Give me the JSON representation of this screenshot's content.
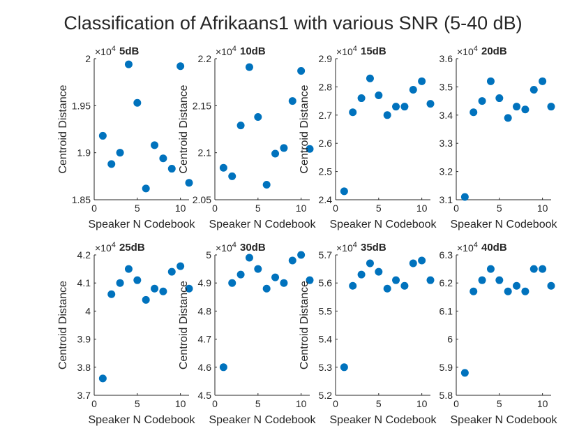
{
  "figure": {
    "title": "Classification of Afrikaans1 with various SNR (5-40 dB)"
  },
  "style": {
    "marker_color": "#0072BD",
    "axis_color": "#262626"
  },
  "chart_data": [
    {
      "type": "scatter",
      "title": "5dB",
      "exponent_label": "×10",
      "exponent": "4",
      "xlabel": "Speaker N Codebook",
      "ylabel": "Centroid Distance",
      "xlim": [
        0,
        11
      ],
      "ylim": [
        1.85,
        2.0
      ],
      "xticks": [
        "0",
        "5",
        "10"
      ],
      "yticks": [
        "1.85",
        "1.9",
        "1.95",
        "2"
      ],
      "x": [
        1,
        2,
        3,
        4,
        5,
        6,
        7,
        8,
        9,
        10,
        11
      ],
      "y": [
        1.918,
        1.888,
        1.9,
        1.994,
        1.953,
        1.862,
        1.908,
        1.894,
        1.883,
        1.992,
        1.868
      ]
    },
    {
      "type": "scatter",
      "title": "10dB",
      "exponent_label": "×10",
      "exponent": "4",
      "xlabel": "Speaker N Codebook",
      "ylabel": "Centroid Distance",
      "xlim": [
        0,
        11
      ],
      "ylim": [
        2.05,
        2.2
      ],
      "xticks": [
        "0",
        "5",
        "10"
      ],
      "yticks": [
        "2.05",
        "2.1",
        "2.15",
        "2.2"
      ],
      "x": [
        1,
        2,
        3,
        4,
        5,
        6,
        7,
        8,
        9,
        10,
        11
      ],
      "y": [
        2.084,
        2.075,
        2.129,
        2.191,
        2.138,
        2.066,
        2.099,
        2.105,
        2.155,
        2.187,
        2.104
      ]
    },
    {
      "type": "scatter",
      "title": "15dB",
      "exponent_label": "×10",
      "exponent": "4",
      "xlabel": "Speaker N Codebook",
      "ylabel": "Centroid Distance",
      "xlim": [
        0,
        11
      ],
      "ylim": [
        2.4,
        2.9
      ],
      "xticks": [
        "0",
        "5",
        "10"
      ],
      "yticks": [
        "2.4",
        "2.5",
        "2.6",
        "2.7",
        "2.8",
        "2.9"
      ],
      "x": [
        1,
        2,
        3,
        4,
        5,
        6,
        7,
        8,
        9,
        10,
        11
      ],
      "y": [
        2.43,
        2.71,
        2.76,
        2.83,
        2.77,
        2.7,
        2.73,
        2.73,
        2.79,
        2.82,
        2.74
      ]
    },
    {
      "type": "scatter",
      "title": "20dB",
      "exponent_label": "×10",
      "exponent": "4",
      "xlabel": "Speaker N Codebook",
      "ylabel": "",
      "xlim": [
        0,
        11
      ],
      "ylim": [
        3.1,
        3.6
      ],
      "xticks": [
        "0",
        "5",
        "10"
      ],
      "yticks": [
        "3.1",
        "3.2",
        "3.3",
        "3.4",
        "3.5",
        "3.6"
      ],
      "x": [
        1,
        2,
        3,
        4,
        5,
        6,
        7,
        8,
        9,
        10,
        11
      ],
      "y": [
        3.11,
        3.41,
        3.45,
        3.52,
        3.46,
        3.39,
        3.43,
        3.42,
        3.49,
        3.52,
        3.43
      ]
    },
    {
      "type": "scatter",
      "title": "25dB",
      "exponent_label": "×10",
      "exponent": "4",
      "xlabel": "Speaker N Codebook",
      "ylabel": "Centroid Distance",
      "xlim": [
        0,
        11
      ],
      "ylim": [
        3.7,
        4.2
      ],
      "xticks": [
        "0",
        "5",
        "10"
      ],
      "yticks": [
        "3.7",
        "3.8",
        "3.9",
        "4",
        "4.1",
        "4.2"
      ],
      "x": [
        1,
        2,
        3,
        4,
        5,
        6,
        7,
        8,
        9,
        10,
        11
      ],
      "y": [
        3.76,
        4.06,
        4.1,
        4.15,
        4.11,
        4.04,
        4.08,
        4.07,
        4.14,
        4.16,
        4.08
      ]
    },
    {
      "type": "scatter",
      "title": "30dB",
      "exponent_label": "×10",
      "exponent": "4",
      "xlabel": "Speaker N Codebook",
      "ylabel": "Centroid Distance",
      "xlim": [
        0,
        11
      ],
      "ylim": [
        4.5,
        5.0
      ],
      "xticks": [
        "0",
        "5",
        "10"
      ],
      "yticks": [
        "4.5",
        "4.6",
        "4.7",
        "4.8",
        "4.9",
        "5"
      ],
      "x": [
        1,
        2,
        3,
        4,
        5,
        6,
        7,
        8,
        9,
        10,
        11
      ],
      "y": [
        4.6,
        4.9,
        4.93,
        4.99,
        4.95,
        4.88,
        4.92,
        4.9,
        4.98,
        5.0,
        4.91
      ]
    },
    {
      "type": "scatter",
      "title": "35dB",
      "exponent_label": "×10",
      "exponent": "4",
      "xlabel": "Speaker N Codebook",
      "ylabel": "Centroid Distance",
      "xlim": [
        0,
        11
      ],
      "ylim": [
        5.2,
        5.7
      ],
      "xticks": [
        "0",
        "5",
        "10"
      ],
      "yticks": [
        "5.2",
        "5.3",
        "5.4",
        "5.5",
        "5.6",
        "5.7"
      ],
      "x": [
        1,
        2,
        3,
        4,
        5,
        6,
        7,
        8,
        9,
        10,
        11
      ],
      "y": [
        5.3,
        5.59,
        5.63,
        5.67,
        5.64,
        5.58,
        5.61,
        5.59,
        5.67,
        5.68,
        5.61
      ]
    },
    {
      "type": "scatter",
      "title": "40dB",
      "exponent_label": "×10",
      "exponent": "4",
      "xlabel": "Speaker N Codebook",
      "ylabel": "",
      "xlim": [
        0,
        11
      ],
      "ylim": [
        5.8,
        6.3
      ],
      "xticks": [
        "0",
        "5",
        "10"
      ],
      "yticks": [
        "5.8",
        "5.9",
        "6",
        "6.1",
        "6.2",
        "6.3"
      ],
      "x": [
        1,
        2,
        3,
        4,
        5,
        6,
        7,
        8,
        9,
        10,
        11
      ],
      "y": [
        5.88,
        6.17,
        6.21,
        6.25,
        6.21,
        6.17,
        6.19,
        6.17,
        6.25,
        6.25,
        6.19
      ]
    }
  ]
}
